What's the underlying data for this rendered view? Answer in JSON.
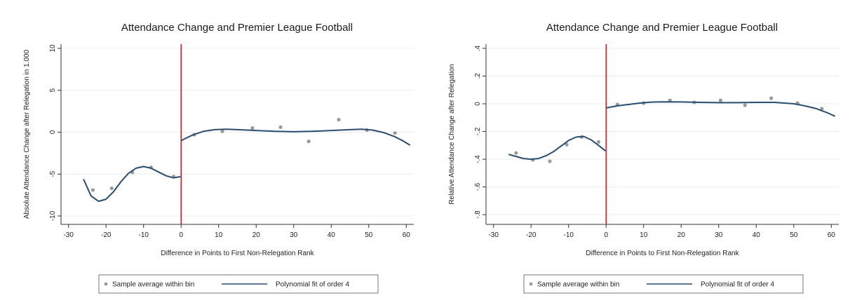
{
  "chart_data": [
    {
      "type": "scatter",
      "title": "Attendance Change and Premier League Football",
      "xlabel": "Difference in Points to First Non-Relegation Rank",
      "ylabel": "Absolute Attendance Change after Relegation in 1.000",
      "xlim": [
        -32,
        62
      ],
      "ylim": [
        -11,
        10.5
      ],
      "xticks": [
        -30,
        -20,
        -10,
        0,
        10,
        20,
        30,
        40,
        50,
        60
      ],
      "xtick_labels": [
        "-30",
        "-20",
        "-10",
        "0",
        "10",
        "20",
        "30",
        "40",
        "50",
        "60"
      ],
      "yticks": [
        -10,
        -5,
        0,
        5,
        10
      ],
      "ytick_labels": [
        "-10",
        "-5",
        "0",
        "5",
        "10"
      ],
      "grid": true,
      "cutoff_line": {
        "x": 0,
        "color": "#e0141c"
      },
      "series": [
        {
          "name": "Sample average within bin",
          "kind": "points",
          "color": "#9a9a9a",
          "x": [
            -23.5,
            -18.5,
            -13,
            -8,
            -2,
            3.5,
            11,
            19,
            26.5,
            34,
            42,
            49.5,
            57
          ],
          "y": [
            -6.9,
            -6.7,
            -4.8,
            -4.2,
            -5.3,
            -0.3,
            0.1,
            0.5,
            0.6,
            -1.1,
            1.5,
            0.25,
            -0.1
          ]
        },
        {
          "name": "Polynomial fit of order 4",
          "kind": "line",
          "color": "#2a4d70",
          "segments": [
            {
              "x": [
                -26,
                -24,
                -22,
                -20,
                -18,
                -16,
                -14,
                -12,
                -10,
                -8,
                -6,
                -4,
                -2,
                -0.2
              ],
              "y": [
                -5.6,
                -7.6,
                -8.25,
                -8.0,
                -7.1,
                -5.9,
                -4.9,
                -4.3,
                -4.1,
                -4.3,
                -4.75,
                -5.2,
                -5.45,
                -5.3
              ]
            },
            {
              "x": [
                0,
                3,
                6,
                9,
                12,
                15,
                20,
                25,
                30,
                35,
                40,
                45,
                48,
                51,
                54,
                57,
                59,
                61
              ],
              "y": [
                -1.0,
                -0.35,
                0.1,
                0.3,
                0.35,
                0.3,
                0.2,
                0.1,
                0.05,
                0.1,
                0.2,
                0.3,
                0.35,
                0.25,
                -0.05,
                -0.55,
                -1.0,
                -1.55
              ]
            }
          ]
        }
      ],
      "legend": {
        "position": "bottom",
        "entries": [
          {
            "label": "Sample average within bin",
            "kind": "point",
            "color": "#9a9a9a"
          },
          {
            "label": "Polynomial fit of order 4",
            "kind": "line",
            "color": "#2a4d70"
          }
        ]
      }
    },
    {
      "type": "scatter",
      "title": "Attendance Change and Premier League Football",
      "xlabel": "Difference in Points to First Non-Relegation Rank",
      "ylabel": "Relative Attendance Change after Relegation",
      "xlim": [
        -32,
        62
      ],
      "ylim": [
        -0.87,
        0.43
      ],
      "xticks": [
        -30,
        -20,
        -10,
        0,
        10,
        20,
        30,
        40,
        50,
        60
      ],
      "xtick_labels": [
        "-30",
        "-20",
        "-10",
        "0",
        "10",
        "20",
        "30",
        "40",
        "50",
        "60"
      ],
      "yticks": [
        -0.8,
        -0.6,
        -0.4,
        -0.2,
        0,
        0.2,
        0.4
      ],
      "ytick_labels": [
        "-.8",
        "-.6",
        "-.4",
        "-.2",
        "0",
        ".2",
        ".4"
      ],
      "grid": true,
      "cutoff_line": {
        "x": 0,
        "color": "#e0141c"
      },
      "series": [
        {
          "name": "Sample average within bin",
          "kind": "points",
          "color": "#9a9a9a",
          "x": [
            -24,
            -19.5,
            -15,
            -10.5,
            -6.5,
            -2,
            3,
            10,
            17,
            23.5,
            30.5,
            37,
            44,
            51,
            57.5
          ],
          "y": [
            -0.355,
            -0.405,
            -0.415,
            -0.295,
            -0.24,
            -0.275,
            -0.005,
            0.005,
            0.025,
            0.01,
            0.025,
            -0.01,
            0.04,
            0.005,
            -0.035
          ]
        },
        {
          "name": "Polynomial fit of order 4",
          "kind": "line",
          "color": "#2a4d70",
          "segments": [
            {
              "x": [
                -26,
                -24,
                -22,
                -20,
                -18,
                -16,
                -14,
                -12,
                -10,
                -8,
                -6,
                -4,
                -2,
                -0.2
              ],
              "y": [
                -0.365,
                -0.38,
                -0.395,
                -0.4,
                -0.395,
                -0.375,
                -0.345,
                -0.305,
                -0.265,
                -0.24,
                -0.235,
                -0.26,
                -0.3,
                -0.34
              ]
            },
            {
              "x": [
                0,
                3,
                6,
                9,
                12,
                15,
                20,
                25,
                30,
                35,
                40,
                45,
                50,
                53,
                56,
                59,
                61
              ],
              "y": [
                -0.03,
                -0.015,
                -0.005,
                0.005,
                0.012,
                0.014,
                0.013,
                0.01,
                0.008,
                0.008,
                0.01,
                0.01,
                0.0,
                -0.015,
                -0.035,
                -0.065,
                -0.09
              ]
            }
          ]
        }
      ],
      "legend": {
        "position": "bottom",
        "entries": [
          {
            "label": "Sample average within bin",
            "kind": "point",
            "color": "#9a9a9a"
          },
          {
            "label": "Polynomial fit of order 4",
            "kind": "line",
            "color": "#2a4d70"
          }
        ]
      }
    }
  ]
}
